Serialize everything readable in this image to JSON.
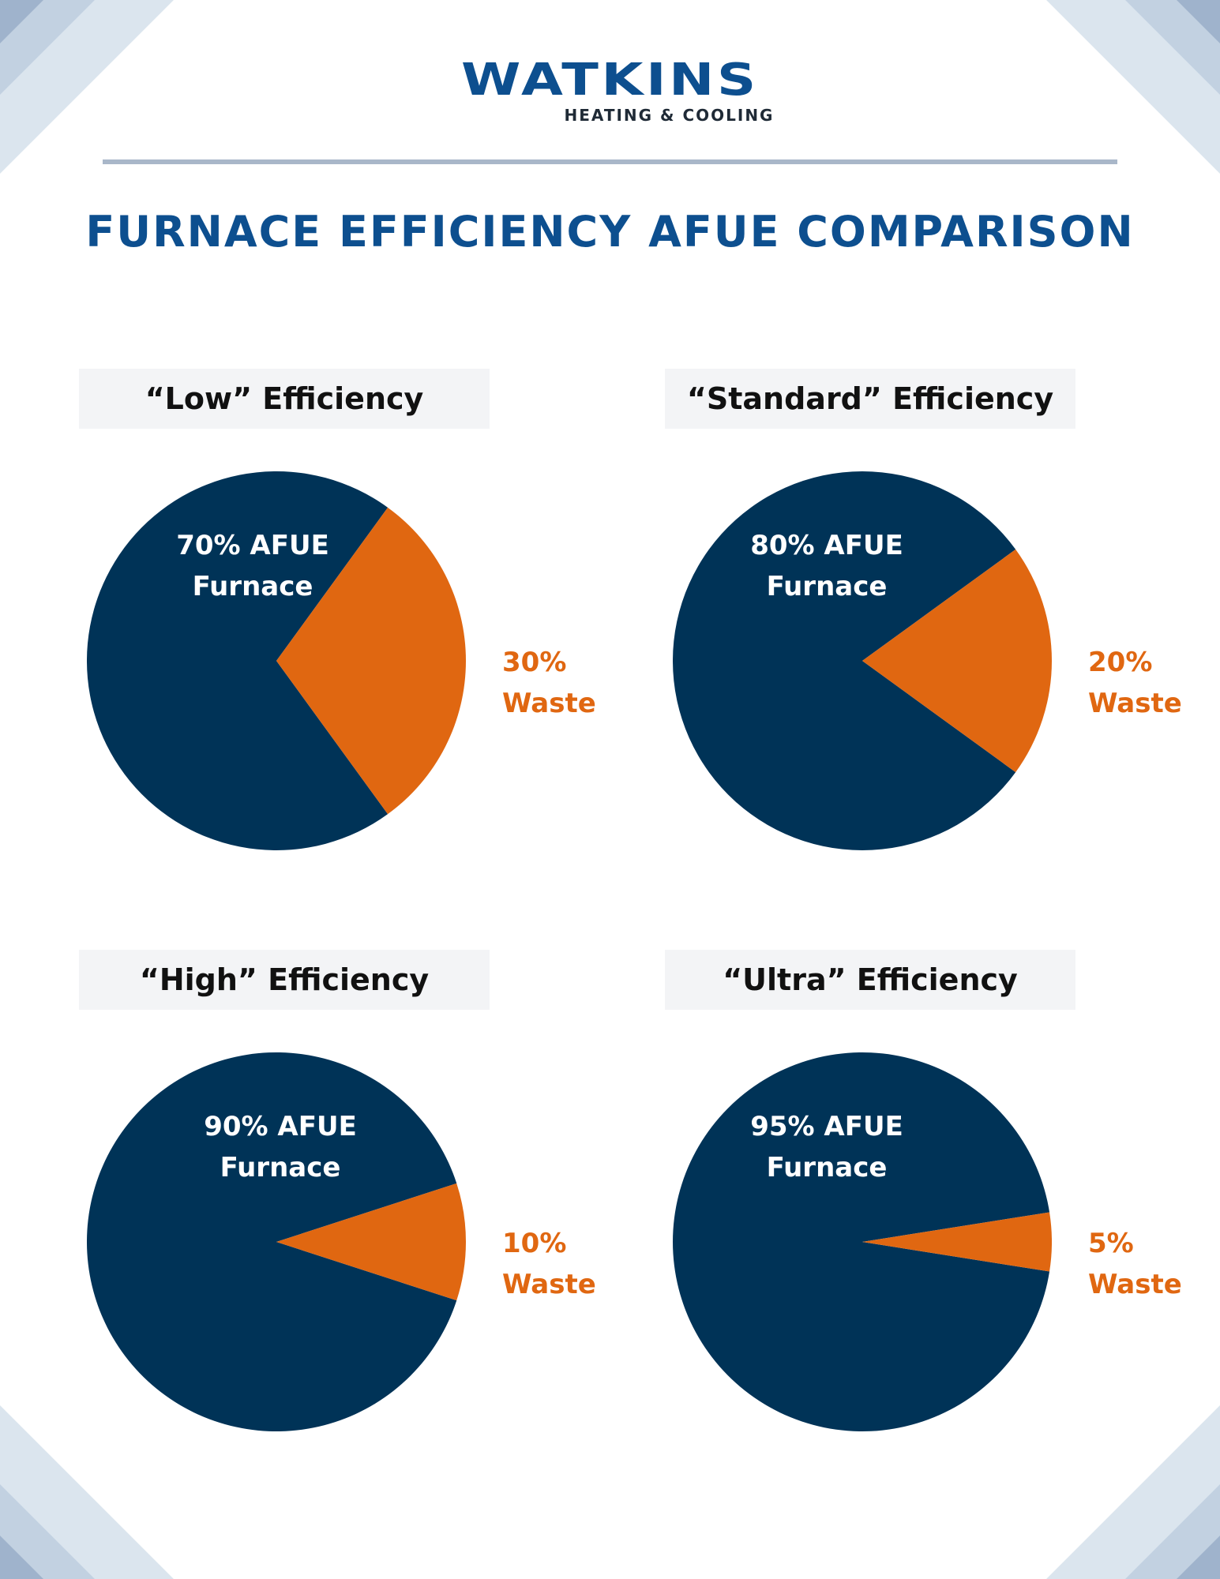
{
  "logo": {
    "name": "WATKINS",
    "tagline": "HEATING & COOLING"
  },
  "title": "FURNACE EFFICIENCY AFUE COMPARISON",
  "colors": {
    "useful": "#003357",
    "waste": "#e06711",
    "title": "#0d4f8f",
    "panel_bg": "#f3f4f6",
    "corner_light": "#dbe5ee",
    "corner_mid": "#c2d1e1",
    "corner_dark": "#9fb3cc"
  },
  "chart_data": [
    {
      "type": "pie",
      "title": "“Low” Efficiency",
      "categories": [
        "Furnace",
        "Waste"
      ],
      "values": [
        70,
        30
      ],
      "labels": {
        "furnace_line1": "70% AFUE",
        "furnace_line2": "Furnace",
        "waste_line1": "30%",
        "waste_line2": "Waste"
      }
    },
    {
      "type": "pie",
      "title": "“Standard” Efficiency",
      "categories": [
        "Furnace",
        "Waste"
      ],
      "values": [
        80,
        20
      ],
      "labels": {
        "furnace_line1": "80% AFUE",
        "furnace_line2": "Furnace",
        "waste_line1": "20%",
        "waste_line2": "Waste"
      }
    },
    {
      "type": "pie",
      "title": "“High” Efficiency",
      "categories": [
        "Furnace",
        "Waste"
      ],
      "values": [
        90,
        10
      ],
      "labels": {
        "furnace_line1": "90% AFUE",
        "furnace_line2": "Furnace",
        "waste_line1": "10%",
        "waste_line2": "Waste"
      }
    },
    {
      "type": "pie",
      "title": "“Ultra” Efficiency",
      "categories": [
        "Furnace",
        "Waste"
      ],
      "values": [
        95,
        5
      ],
      "labels": {
        "furnace_line1": "95% AFUE",
        "furnace_line2": "Furnace",
        "waste_line1": "5%",
        "waste_line2": "Waste"
      }
    }
  ]
}
